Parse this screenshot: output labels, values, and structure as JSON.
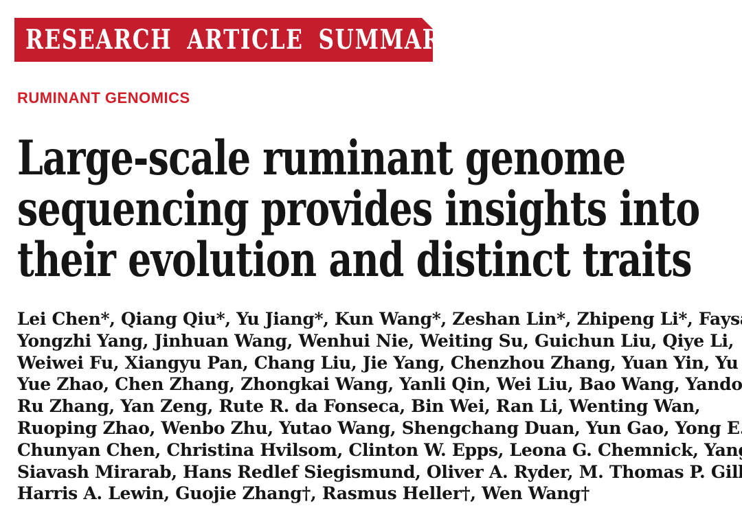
{
  "banner": {
    "label": "RESEARCH ARTICLE SUMMARY"
  },
  "kicker": {
    "label": "RUMINANT GENOMICS"
  },
  "title": {
    "lines": [
      "Large-scale ruminant genome",
      "sequencing provides insights into",
      "their evolution and distinct traits"
    ]
  },
  "authors": {
    "lines": [
      "Lei Chen*, Qiang Qiu*, Yu Jiang*, Kun Wang*, Zeshan Lin*, Zhipeng Li*, Faysal Bibi,",
      "Yongzhi Yang, Jinhuan Wang, Wenhui Nie, Weiting Su, Guichun Liu, Qiye Li,",
      "Weiwei Fu, Xiangyu Pan, Chang Liu, Jie Yang, Chenzhou Zhang, Yuan Yin, Yu Wang,",
      "Yue Zhao, Chen Zhang, Zhongkai Wang, Yanli Qin, Wei Liu, Bao Wang, Yandong Ren,",
      "Ru Zhang, Yan Zeng, Rute R. da Fonseca, Bin Wei, Ran Li, Wenting Wan,",
      "Ruoping Zhao, Wenbo Zhu, Yutao Wang, Shengchang Duan, Yun Gao, Yong E. Zhang,",
      "Chunyan Chen, Christina Hvilsom, Clinton W. Epps, Leona G. Chemnick, Yang Dong,",
      "Siavash Mirarab, Hans Redlef Siegismund, Oliver A. Ryder, M. Thomas P. Gilbert,",
      "Harris A. Lewin, Guojie Zhang†, Rasmus Heller†, Wen Wang†"
    ]
  },
  "colors": {
    "banner_red": "#c41e2e",
    "kicker_red": "#d21e28",
    "text_black": "#151515"
  }
}
